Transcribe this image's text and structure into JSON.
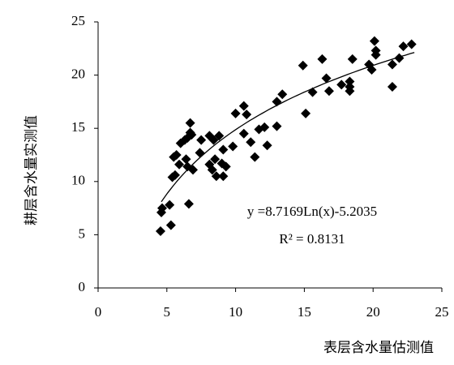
{
  "chart_data": {
    "type": "scatter",
    "x_label": "表层含水量估测值",
    "y_label": "耕层含水量实测值",
    "xlim": [
      0,
      25
    ],
    "xticks": [
      0,
      5,
      10,
      15,
      20,
      25
    ],
    "ylim": [
      0,
      25
    ],
    "yticks": [
      0,
      5,
      10,
      15,
      20,
      25
    ],
    "color": "#000000",
    "series": [
      {
        "name": null,
        "color": "#000000",
        "x": [
          4.54,
          4.6,
          4.66,
          5.2,
          5.3,
          5.4,
          5.5,
          5.6,
          5.7,
          5.9,
          6.0,
          6.3,
          6.4,
          6.5,
          6.5,
          6.7,
          6.7,
          6.8,
          6.6,
          6.9,
          7.4,
          7.5,
          8.1,
          8.1,
          8.3,
          8.5,
          8.4,
          8.6,
          8.8,
          9.0,
          9.1,
          9.1,
          9.3,
          9.8,
          10.0,
          10.6,
          10.6,
          10.8,
          11.1,
          11.4,
          11.7,
          12.1,
          12.3,
          13.0,
          13.0,
          13.4,
          14.9,
          15.1,
          15.6,
          16.3,
          16.6,
          16.8,
          17.7,
          18.3,
          18.3,
          18.3,
          18.5,
          19.7,
          19.9,
          20.1,
          20.2,
          20.2,
          21.4,
          21.4,
          21.9,
          22.2,
          22.8
        ],
        "values": [
          5.34,
          7.1,
          7.5,
          7.8,
          5.9,
          10.4,
          12.3,
          10.6,
          12.5,
          11.6,
          13.6,
          13.9,
          12.1,
          14.1,
          11.4,
          14.6,
          15.5,
          14.4,
          7.9,
          11.1,
          12.7,
          13.9,
          14.3,
          11.6,
          11.1,
          12.1,
          13.9,
          10.5,
          14.3,
          11.7,
          13.0,
          10.5,
          11.4,
          13.3,
          16.4,
          17.1,
          14.5,
          16.3,
          13.7,
          12.3,
          14.9,
          15.1,
          13.4,
          15.2,
          17.5,
          18.2,
          20.9,
          16.4,
          18.4,
          21.5,
          19.7,
          18.5,
          19.1,
          18.9,
          19.4,
          18.5,
          21.5,
          21.0,
          20.5,
          23.2,
          22.3,
          21.9,
          18.9,
          21.0,
          21.6,
          22.7,
          22.9
        ]
      }
    ],
    "trendline": {
      "coefficients": [
        8.7169,
        -5.2035
      ],
      "x_range": [
        4.6,
        23
      ],
      "equation": "y =8.7169Ln(x)-5.2035",
      "r2_label": "R² = 0.8131"
    }
  }
}
